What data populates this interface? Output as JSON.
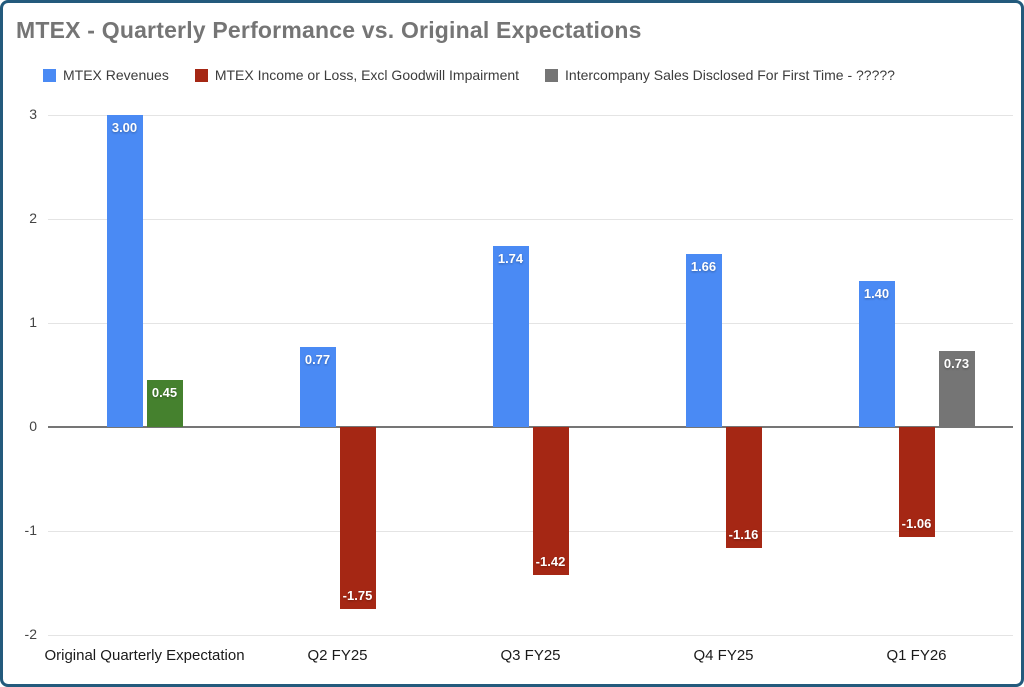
{
  "title": "MTEX - Quarterly Performance vs. Original Expectations",
  "chart_data": {
    "type": "bar",
    "title": "MTEX - Quarterly Performance vs. Original Expectations",
    "categories": [
      "Original Quarterly Expectation",
      "Q2 FY25",
      "Q3 FY25",
      "Q4 FY25",
      "Q1 FY26"
    ],
    "series": [
      {
        "name": "MTEX Revenues",
        "color": "#4a8af4",
        "values": [
          3.0,
          0.77,
          1.74,
          1.66,
          1.4
        ]
      },
      {
        "name": "MTEX Income or Loss, Excl Goodwill Impairment",
        "color": "#a52714",
        "values": [
          0.45,
          -1.75,
          -1.42,
          -1.16,
          -1.06
        ],
        "point_colors": [
          "#45812e",
          null,
          null,
          null,
          null
        ]
      },
      {
        "name": "Intercompany Sales Disclosed For First Time - ?????",
        "color": "#757575",
        "values": [
          null,
          null,
          null,
          null,
          0.73
        ]
      }
    ],
    "ylim": [
      -2,
      3
    ],
    "yticks": [
      3,
      2,
      1,
      0,
      -1,
      -2
    ],
    "grid": true,
    "legend_position": "top",
    "value_label_format": "0.00"
  },
  "colors": {
    "frame_border": "#235a7c",
    "grid_line": "#e4e4e4",
    "zero_line": "#757575",
    "title_text": "#757575",
    "axis_text": "#444444",
    "category_text": "#1a1a1a",
    "bar_label_text": "#ffffff"
  }
}
